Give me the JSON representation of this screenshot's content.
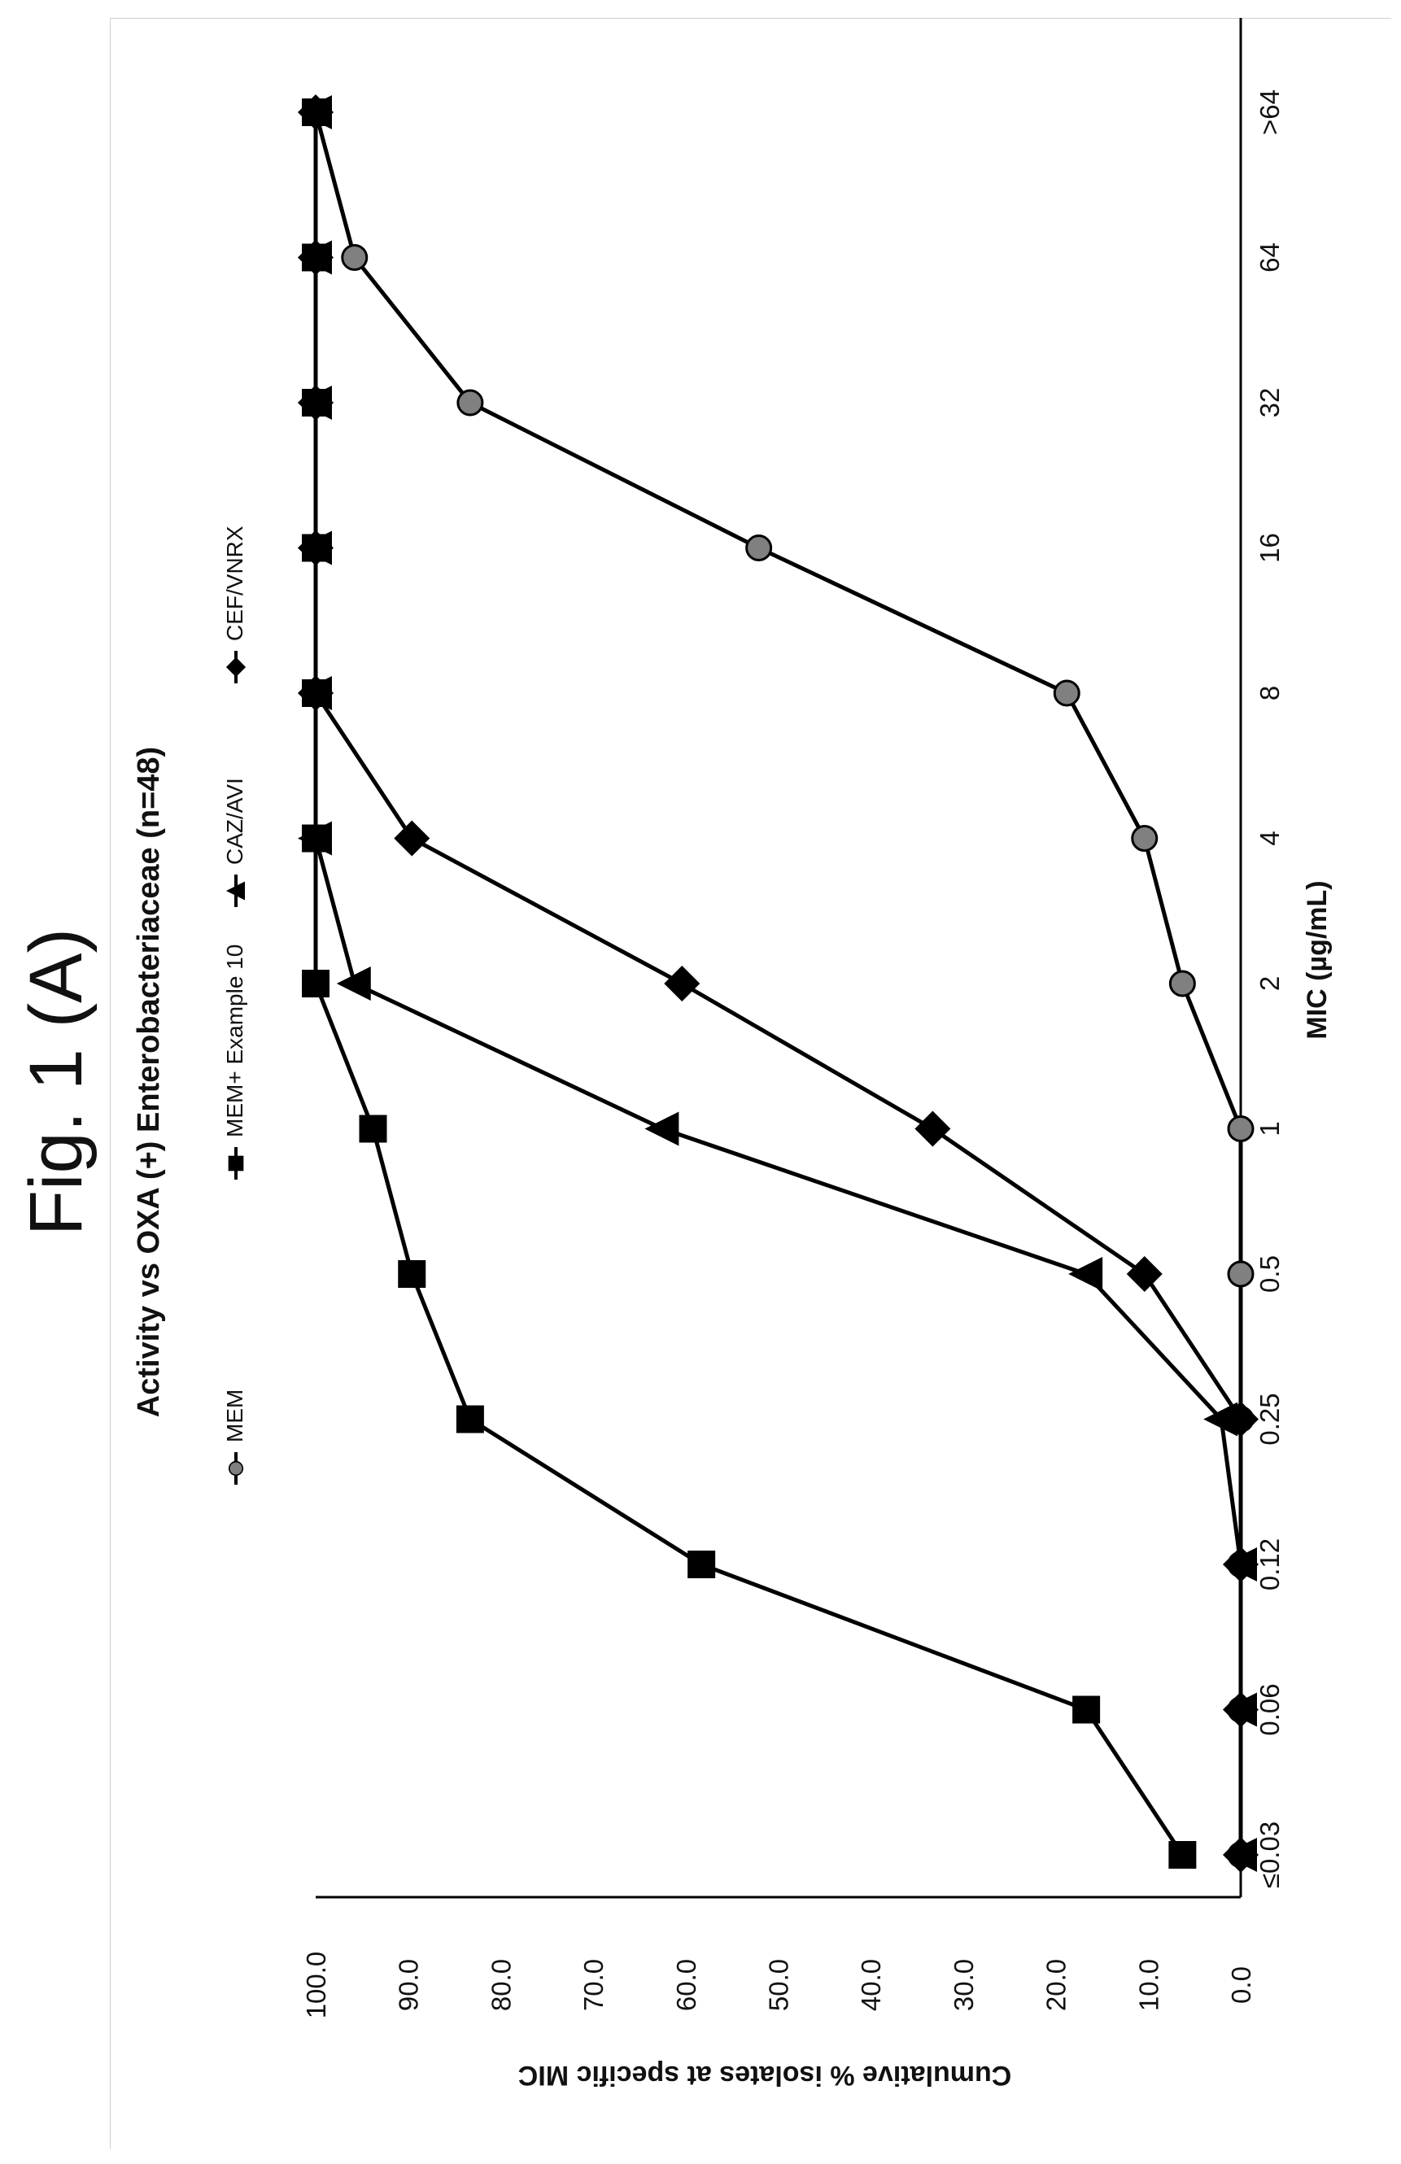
{
  "figure_label": "Fig. 1 (A)",
  "chart_data": {
    "type": "line",
    "title": "Activity vs OXA (+) Enterobacteriaceae (n=48)",
    "xlabel": "MIC (µg/mL)",
    "ylabel": "Cumulative % isolates at specific MIC",
    "categories": [
      "≤0.03",
      "0.06",
      "0.12",
      "0.25",
      "0.5",
      "1",
      "2",
      "4",
      "8",
      "16",
      "32",
      "64",
      ">64"
    ],
    "yticks": [
      "0.0",
      "10.0",
      "20.0",
      "30.0",
      "40.0",
      "50.0",
      "60.0",
      "70.0",
      "80.0",
      "90.0",
      "100.0"
    ],
    "ylim": [
      0,
      100
    ],
    "grid": false,
    "legend_position": "top",
    "orientation": "rotated 90° counter-clockwise on the page",
    "series": [
      {
        "name": "MEM",
        "marker": "circle",
        "color": "#808080",
        "values": [
          0,
          0,
          0,
          0,
          0,
          0,
          6.3,
          10.4,
          18.8,
          52.1,
          83.3,
          95.8,
          100
        ]
      },
      {
        "name": "MEM+ Example 10",
        "marker": "square",
        "color": "#000000",
        "values": [
          6.3,
          16.7,
          58.3,
          83.3,
          89.6,
          93.8,
          100,
          100,
          100,
          100,
          100,
          100,
          100
        ]
      },
      {
        "name": "CAZ/AVI",
        "marker": "triangle",
        "color": "#000000",
        "values": [
          0,
          0,
          0,
          2.1,
          16.7,
          62.5,
          95.8,
          100,
          100,
          100,
          100,
          100,
          100
        ]
      },
      {
        "name": "CEF/VNRX",
        "marker": "diamond",
        "color": "#000000",
        "values": [
          0,
          0,
          0,
          0,
          10.4,
          33.3,
          60.4,
          89.6,
          100,
          100,
          100,
          100,
          100
        ]
      }
    ]
  }
}
